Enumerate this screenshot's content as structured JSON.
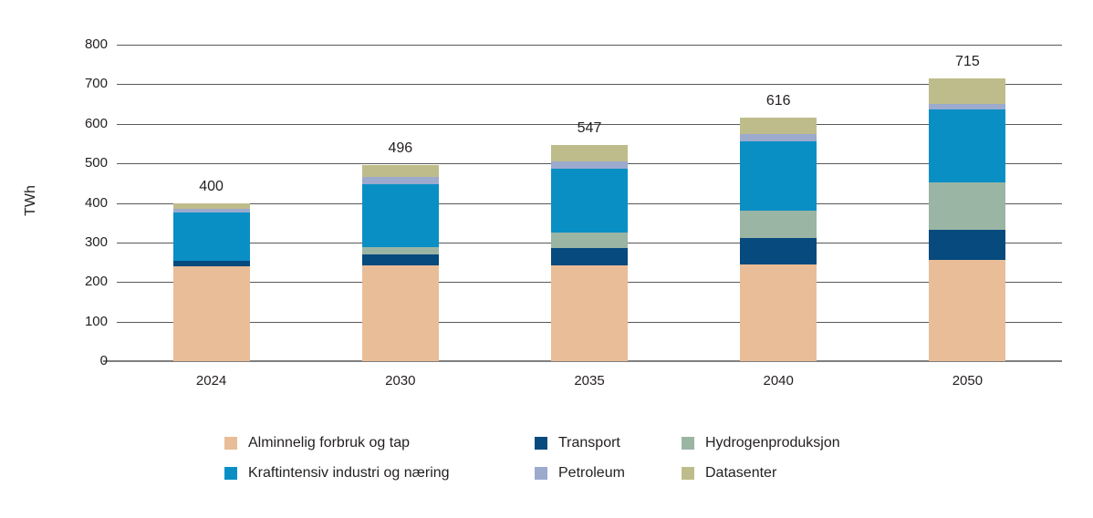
{
  "chart_data": {
    "type": "bar",
    "stacked": true,
    "title": "",
    "ylabel": "TWh",
    "xlabel": "",
    "unit": "TWh",
    "categories": [
      "2024",
      "2030",
      "2035",
      "2040",
      "2050"
    ],
    "series": [
      {
        "name": "Alminnelig forbruk og tap",
        "color": "#e9bd97",
        "values": [
          239,
          242,
          243,
          244,
          255
        ]
      },
      {
        "name": "Transport",
        "color": "#064a7e",
        "values": [
          14,
          28,
          43,
          67,
          76
        ]
      },
      {
        "name": "Hydrogenproduksjon",
        "color": "#9ab5a4",
        "values": [
          0,
          18,
          38,
          69,
          122
        ]
      },
      {
        "name": "Kraftintensiv industri og næring",
        "color": "#0a8fc5",
        "values": [
          122,
          160,
          163,
          175,
          184
        ]
      },
      {
        "name": "Petroleum",
        "color": "#9caacd",
        "values": [
          9,
          17,
          18,
          19,
          14
        ]
      },
      {
        "name": "Datasenter",
        "color": "#bfbc8b",
        "values": [
          16,
          31,
          42,
          42,
          64
        ]
      }
    ],
    "totals": [
      "400",
      "496",
      "547",
      "616",
      "715"
    ],
    "ylim": [
      0,
      800
    ],
    "yticks": [
      "0",
      "100",
      "200",
      "300",
      "400",
      "500",
      "600",
      "700",
      "800"
    ],
    "grid": true,
    "legend_position": "bottom"
  },
  "legend": {
    "columns": [
      [
        "Alminnelig forbruk og tap",
        "Kraftintensiv industri og næring"
      ],
      [
        "Transport",
        "Petroleum"
      ],
      [
        "Hydrogenproduksjon",
        "Datasenter"
      ]
    ]
  },
  "colors": {
    "gridline": "#595959",
    "zero_axis": "#7f7f7f",
    "text": "#231f20"
  }
}
